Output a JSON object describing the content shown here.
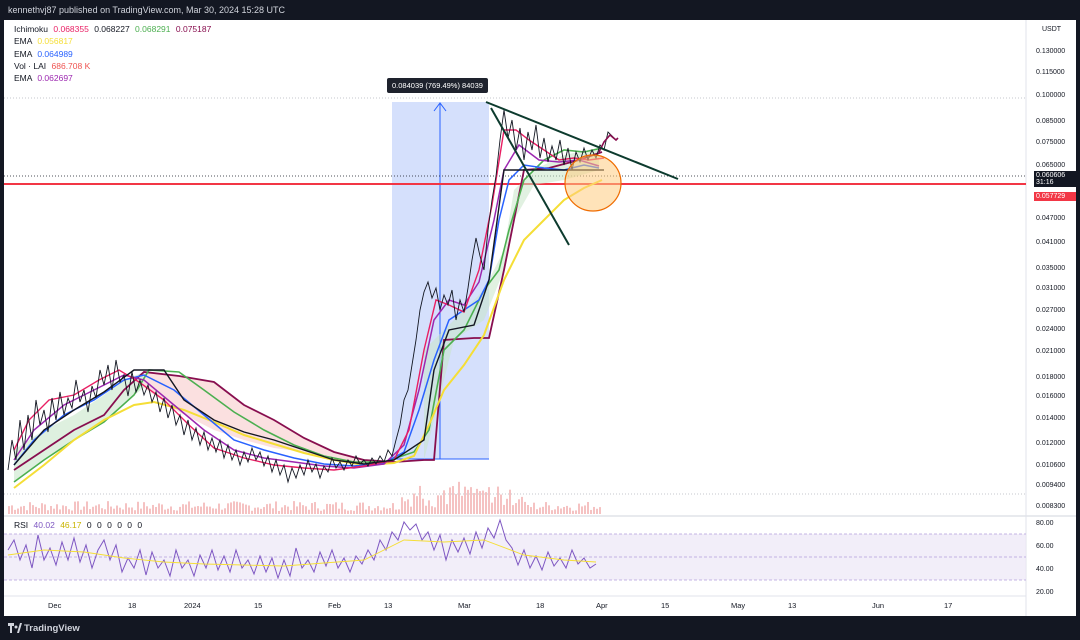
{
  "header": {
    "published_text": "kennethvj87 published on TradingView.com, Mar 30, 2024 15:28 UTC"
  },
  "legend": {
    "ichimoku": {
      "label": "Ichimoku",
      "values": [
        "0.068355",
        "0.068227",
        "0.068291",
        "0.075187"
      ],
      "colors": [
        "#e91e63",
        "#131722",
        "#4caf50",
        "#880e4f"
      ]
    },
    "ema1": {
      "label": "EMA",
      "value": "0.056817",
      "color": "#f5de36"
    },
    "ema2": {
      "label": "EMA",
      "value": "0.064989",
      "color": "#2962ff"
    },
    "vol": {
      "label": "Vol · LAI",
      "value": "686.708 K",
      "color": "#ef5350"
    },
    "ema3": {
      "label": "EMA",
      "value": "0.062697",
      "color": "#9c27b0"
    }
  },
  "price_axis": {
    "currency": "USDT",
    "ticks": [
      "0.130000",
      "0.115000",
      "0.100000",
      "0.085000",
      "0.075000",
      "0.065000",
      "0.047000",
      "0.041000",
      "0.035000",
      "0.031000",
      "0.027000",
      "0.024000",
      "0.021000",
      "0.018000",
      "0.016000",
      "0.014000",
      "0.012000",
      "0.010600",
      "0.009400",
      "0.008300"
    ],
    "current_price": "0.060606",
    "countdown": "31:16",
    "line_price": "0.057729"
  },
  "time_axis": {
    "labels": [
      "Dec",
      "18",
      "2024",
      "15",
      "Feb",
      "13",
      "Mar",
      "18",
      "Apr",
      "15",
      "May",
      "13",
      "Jun",
      "17"
    ]
  },
  "measure": {
    "label": "0.084039 (769.49%) 84039"
  },
  "rsi": {
    "label": "RSI",
    "values": [
      "40.02",
      "46.17",
      "0",
      "0",
      "0",
      "0",
      "0",
      "0"
    ],
    "ticks": [
      "80.00",
      "60.00",
      "40.00",
      "20.00"
    ]
  },
  "footer": {
    "brand": "TradingView"
  },
  "colors": {
    "background": "#ffffff",
    "frame": "#131722",
    "candle": "#131722",
    "tenkan": "#e91e63",
    "kijun": "#131722",
    "span_a": "#4caf50",
    "span_b": "#880e4f",
    "ema_yellow": "#f5de36",
    "ema_blue": "#2962ff",
    "ema_purple": "#9c27b0",
    "horizontal_line": "#f23645",
    "trendline": "#0d3b2e",
    "measure_fill": "#c7d6fb",
    "rsi_line": "#7e57c2",
    "rsi_band": "#ede7f6"
  }
}
